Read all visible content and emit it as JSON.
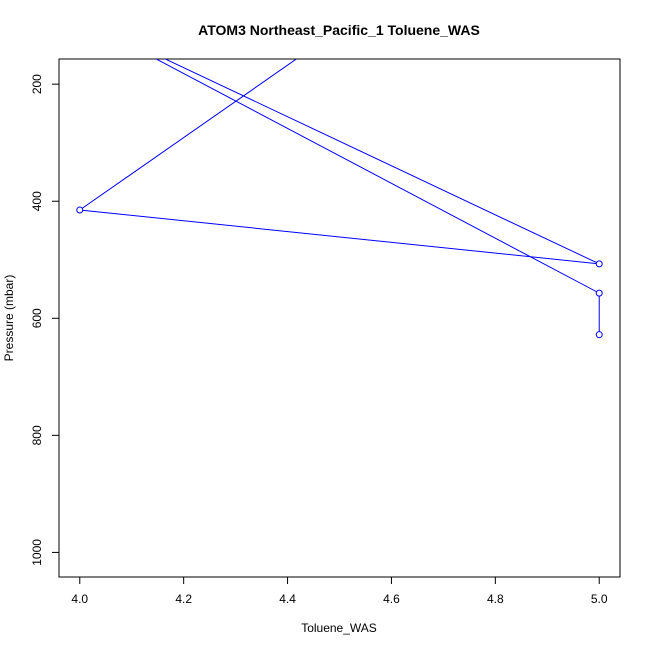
{
  "chart_data": {
    "type": "line",
    "title": "ATOM3 Northeast_Pacific_1 Toluene_WAS",
    "xlabel": "Toluene_WAS",
    "ylabel": "Pressure (mbar)",
    "xlim": [
      3.96,
      5.04
    ],
    "ylim": [
      1042,
      157
    ],
    "y_reversed": true,
    "x_ticks": [
      4.0,
      4.2,
      4.4,
      4.6,
      4.8,
      5.0
    ],
    "x_tick_labels": [
      "4.0",
      "4.2",
      "4.4",
      "4.6",
      "4.8",
      "5.0"
    ],
    "y_ticks": [
      200,
      400,
      600,
      800,
      1000
    ],
    "y_tick_labels": [
      "200",
      "400",
      "600",
      "800",
      "1000"
    ],
    "series": [
      {
        "color": "#0000ff",
        "marker": "open-circle",
        "points": [
          {
            "x": 5.0,
            "y": 628
          },
          {
            "x": 5.0,
            "y": 557
          },
          {
            "x": 4.0,
            "y": 88
          },
          {
            "x": 5.0,
            "y": 507
          },
          {
            "x": 4.0,
            "y": 415
          },
          {
            "x": 4.8,
            "y": -80
          }
        ]
      }
    ],
    "grid": false,
    "legend": "none"
  }
}
